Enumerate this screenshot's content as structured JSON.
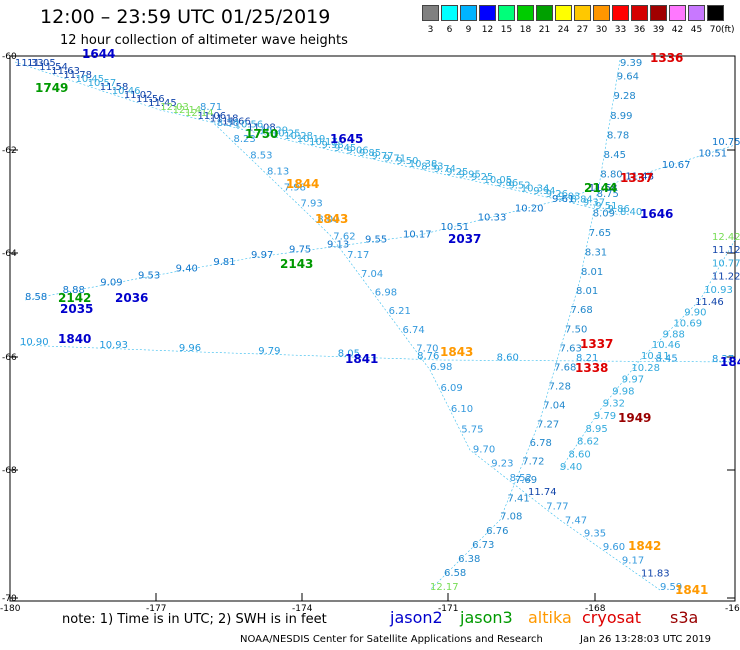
{
  "title": "12:00 – 23:59 UTC 01/25/2019",
  "subtitle": "12 hour collection of altimeter wave heights",
  "legend": {
    "unit": "(ft)",
    "levels": [
      "3",
      "6",
      "9",
      "12",
      "15",
      "18",
      "21",
      "24",
      "27",
      "30",
      "33",
      "36",
      "39",
      "42",
      "45",
      "70"
    ],
    "colors": [
      "#808080",
      "#00ffff",
      "#00b4ff",
      "#0000ff",
      "#00ff7a",
      "#00cc00",
      "#00a000",
      "#ffff00",
      "#ffc800",
      "#ff9600",
      "#ff0000",
      "#d40000",
      "#a00000",
      "#ff78ff",
      "#c878ff",
      "#000000"
    ]
  },
  "lat_labels": [
    "-60",
    "-62",
    "-64",
    "-66",
    "-68",
    "-70"
  ],
  "lon_labels": [
    "-180",
    "-177",
    "-174",
    "-171",
    "-168",
    "-16"
  ],
  "note": "note:  1) Time is in UTC; 2) SWH is in feet",
  "satellites": [
    {
      "name": "jason2",
      "color": "#0000cc"
    },
    {
      "name": "jason3",
      "color": "#009900"
    },
    {
      "name": "altika",
      "color": "#ff9900"
    },
    {
      "name": "cryosat",
      "color": "#dd0000"
    },
    {
      "name": "s3a",
      "color": "#990000"
    }
  ],
  "footer": "NOAA/NESDIS Center for Satellite Applications and Research",
  "generated": "Jan 26 13:28:03 UTC 2019",
  "times": [
    {
      "t": "1644",
      "sat": "jason2"
    },
    {
      "t": "1749",
      "sat": "jason3"
    },
    {
      "t": "1645",
      "sat": "jason2"
    },
    {
      "t": "1750",
      "sat": "jason3"
    },
    {
      "t": "1844",
      "sat": "altika"
    },
    {
      "t": "1843",
      "sat": "altika"
    },
    {
      "t": "2143",
      "sat": "jason3"
    },
    {
      "t": "2037",
      "sat": "jason2"
    },
    {
      "t": "2142",
      "sat": "jason3"
    },
    {
      "t": "2036",
      "sat": "jason2"
    },
    {
      "t": "2035",
      "sat": "jason2"
    },
    {
      "t": "1840",
      "sat": "jason2"
    },
    {
      "t": "1841",
      "sat": "jason2"
    },
    {
      "t": "1843",
      "sat": "altika"
    },
    {
      "t": "1336",
      "sat": "cryosat"
    },
    {
      "t": "1337",
      "sat": "cryosat"
    },
    {
      "t": "1337",
      "sat": "cryosat"
    },
    {
      "t": "1338",
      "sat": "cryosat"
    },
    {
      "t": "1646",
      "sat": "jason2"
    },
    {
      "t": "2144",
      "sat": "jason3"
    },
    {
      "t": "1949",
      "sat": "s3a"
    },
    {
      "t": "1842",
      "sat": "altika"
    },
    {
      "t": "1841",
      "sat": "altika"
    },
    {
      "t": "184",
      "sat": "jason2"
    }
  ],
  "values": [
    "11.33",
    "11.05",
    "11.54",
    "11.63",
    "11.78",
    "10.45",
    "10.57",
    "11.58",
    "10.46",
    "11.02",
    "11.56",
    "11.45",
    "12.03",
    "12.14",
    "12.14",
    "11.06",
    "11.18",
    "11.66",
    "10.56",
    "11.08",
    "10.29",
    "10.25",
    "10.28",
    "10.19",
    "10.17",
    "9.98",
    "9.45",
    "9.06",
    "9.85",
    "9.77",
    "9.71",
    "9.50",
    "10.38",
    "8.53",
    "9.74",
    "9.25",
    "9.95",
    "9.25",
    "10.05",
    "9.86",
    "9.52",
    "10.34",
    "9.94",
    "9.26",
    "9.03",
    "8.84",
    "9.37",
    "9.51",
    "9.86",
    "8.40",
    "8.58",
    "8.88",
    "9.09",
    "9.53",
    "9.40",
    "9.81",
    "9.97",
    "9.75",
    "9.13",
    "9.55",
    "10.17",
    "10.51",
    "10.33",
    "10.20",
    "9.61",
    "11.58",
    "11.48",
    "10.67",
    "10.51",
    "10.75",
    "10.90",
    "10.93",
    "9.96",
    "9.79",
    "8.05",
    "8.76",
    "8.60",
    "8.21",
    "8.45",
    "8.27",
    "8.71",
    "8.36",
    "8.23",
    "8.53",
    "8.13",
    "7.98",
    "7.93",
    "8.00",
    "7.62",
    "7.17",
    "7.04",
    "6.98",
    "6.21",
    "6.74",
    "7.70",
    "6.98",
    "6.09",
    "6.10",
    "5.75",
    "9.70",
    "9.23",
    "8.52",
    "11.74",
    "7.77",
    "7.47",
    "9.35",
    "9.60",
    "9.17",
    "11.83",
    "9.59",
    "9.39",
    "9.64",
    "9.28",
    "8.99",
    "8.78",
    "8.45",
    "8.80",
    "8.75",
    "8.09",
    "7.65",
    "8.31",
    "8.01",
    "8.01",
    "7.68",
    "7.50",
    "7.63",
    "7.68",
    "7.28",
    "7.04",
    "7.27",
    "6.78",
    "7.72",
    "7.69",
    "7.41",
    "7.08",
    "6.76",
    "6.73",
    "6.38",
    "6.58",
    "12.17",
    "12.42",
    "11.12",
    "10.77",
    "11.22",
    "10.93",
    "11.46",
    "9.90",
    "10.69",
    "9.88",
    "10.46",
    "10.11",
    "10.28",
    "9.97",
    "9.98",
    "9.32",
    "9.79",
    "8.95",
    "8.62",
    "8.60",
    "9.40",
    "8.75",
    "8.32",
    "7.30",
    "7.88",
    "8.22",
    "7.93",
    "7.60",
    "8.11",
    "6.64",
    "6.08",
    "7.10",
    "7.05",
    "6.89",
    "7.76",
    "8.01",
    "8.66",
    "8.70",
    "9.16",
    "8.93",
    "9.44",
    "9.51",
    "8.61",
    "8.51",
    "7.06",
    "7.64"
  ]
}
